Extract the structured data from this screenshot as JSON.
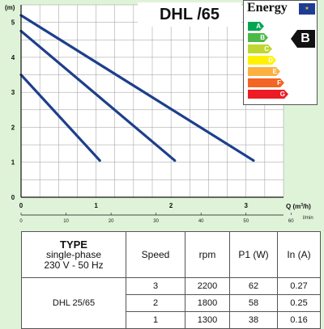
{
  "chart_data": {
    "type": "line",
    "title": "DHL /65",
    "ylabel": "(m)",
    "xlabel": "Q (m³/h)",
    "xlabel_secondary": "l/min",
    "xlim": [
      0,
      3.5
    ],
    "ylim": [
      0,
      5.5
    ],
    "x_ticks": [
      "0",
      "1",
      "2",
      "3"
    ],
    "y_ticks": [
      "0",
      "1",
      "2",
      "3",
      "4",
      "5"
    ],
    "x_ticks_secondary": [
      "0",
      "10",
      "20",
      "30",
      "40",
      "50",
      "60"
    ],
    "secondary_axis_range": [
      0,
      58.33
    ],
    "grid": true,
    "series": [
      {
        "speed": "3",
        "x": [
          0,
          3.1
        ],
        "y": [
          5.2,
          1.05
        ]
      },
      {
        "speed": "2",
        "x": [
          0,
          2.05
        ],
        "y": [
          4.75,
          1.05
        ]
      },
      {
        "speed": "1",
        "x": [
          0,
          1.05
        ],
        "y": [
          3.5,
          1.05
        ]
      }
    ],
    "line_color": "#1d3f8c"
  },
  "y_unit": "(m)",
  "x_unit_q": "Q (m",
  "x_unit_exp": "3",
  "x_unit_rest": "/h)",
  "x_unit_lmin": "l/min",
  "title": "DHL /65",
  "energy_label": {
    "header": "Energy",
    "rating": "B",
    "classes": [
      "A",
      "B",
      "C",
      "D",
      "E",
      "F",
      "G"
    ],
    "colors": [
      "#00a651",
      "#4cb848",
      "#bfd730",
      "#fff200",
      "#fbb040",
      "#f26522",
      "#ed1c24"
    ]
  },
  "table": {
    "type_head": "TYPE",
    "type_sub1": "single-phase",
    "type_sub2": "230 V - 50 Hz",
    "headers": [
      "Speed",
      "rpm",
      "P1 (W)",
      "In (A)"
    ],
    "model": "DHL 25/65",
    "rows": [
      [
        "3",
        "2200",
        "62",
        "0.27"
      ],
      [
        "2",
        "1800",
        "58",
        "0.25"
      ],
      [
        "1",
        "1300",
        "38",
        "0.16"
      ]
    ]
  }
}
